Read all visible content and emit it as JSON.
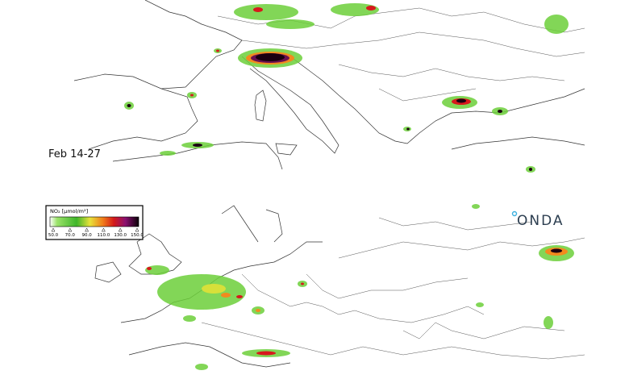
{
  "panels": [
    {
      "label": "Feb 14-27"
    }
  ],
  "legend": {
    "title": "NO₂ [µmol/m²]",
    "ticks": [
      "50.0",
      "70.0",
      "90.0",
      "110.0",
      "130.0",
      "150.0"
    ]
  },
  "logo": "ONDA"
}
